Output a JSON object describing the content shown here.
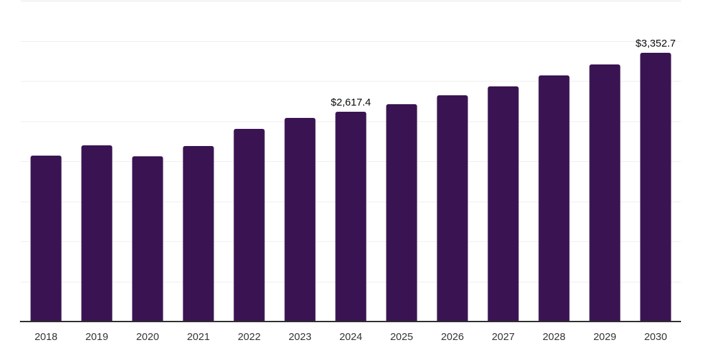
{
  "chart_data": {
    "type": "bar",
    "title": "",
    "xlabel": "",
    "ylabel": "",
    "categories": [
      "2018",
      "2019",
      "2020",
      "2021",
      "2022",
      "2023",
      "2024",
      "2025",
      "2026",
      "2027",
      "2028",
      "2029",
      "2030"
    ],
    "values": [
      2065,
      2195,
      2060,
      2190,
      2405,
      2535,
      2617.4,
      2710,
      2825,
      2935,
      3065,
      3205,
      3352.7
    ],
    "data_labels": {
      "2024": "$2,617.4",
      "2030": "$3,352.7"
    },
    "ylim": [
      0,
      4000
    ],
    "gridline_step": 500,
    "grid": "horizontal-only",
    "legend": "none",
    "y_tick_labels": "none",
    "colors": {
      "bar": "#3a1452",
      "axis_line": "#2e2e2e",
      "gridline": "#efefef",
      "top_gridline": "#e6e6e6",
      "tick_label": "#333333",
      "data_label": "#0a0a0a"
    }
  }
}
